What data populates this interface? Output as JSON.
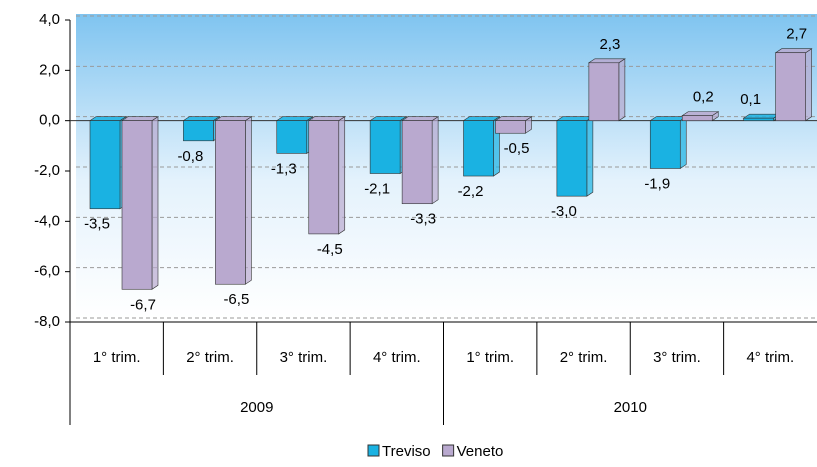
{
  "chart_data": {
    "type": "bar",
    "categories": [
      "1° trim.",
      "2° trim.",
      "3° trim.",
      "4° trim.",
      "1° trim.",
      "2° trim.",
      "3° trim.",
      "4° trim."
    ],
    "group_labels": [
      "2009",
      "2010"
    ],
    "series": [
      {
        "name": "Treviso",
        "color": "#1ab2e2",
        "values": [
          -3.5,
          -0.8,
          -1.3,
          -2.1,
          -2.2,
          -3.0,
          -1.9,
          0.1
        ],
        "value_labels": [
          "-3,5",
          "-0,8",
          "-1,3",
          "-2,1",
          "-2,2",
          "-3,0",
          "-1,9",
          "0,1"
        ]
      },
      {
        "name": "Veneto",
        "color": "#b9a9cf",
        "values": [
          -6.7,
          -6.5,
          -4.5,
          -3.3,
          -0.5,
          2.3,
          0.2,
          2.7
        ],
        "value_labels": [
          "-6,7",
          "-6,5",
          "-4,5",
          "-3,3",
          "-0,5",
          "2,3",
          "0,2",
          "2,7"
        ]
      }
    ],
    "ylim": [
      -8,
      4
    ],
    "yticks": [
      {
        "value": -8,
        "label": "-8,0"
      },
      {
        "value": -6,
        "label": "-6,0"
      },
      {
        "value": -4,
        "label": "-4,0"
      },
      {
        "value": -2,
        "label": "-2,0"
      },
      {
        "value": 0,
        "label": "0,0"
      },
      {
        "value": 2,
        "label": "2,0"
      },
      {
        "value": 4,
        "label": "4,0"
      }
    ],
    "grid": true,
    "legend": "bottom"
  }
}
